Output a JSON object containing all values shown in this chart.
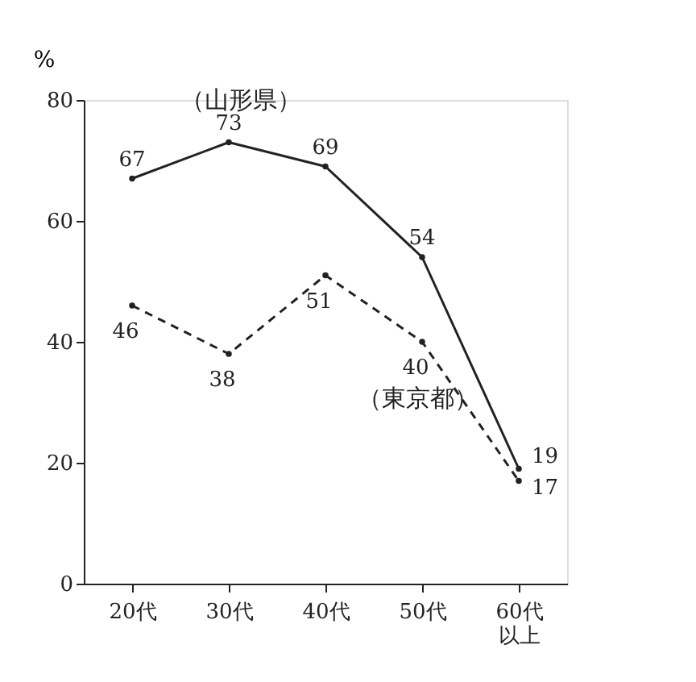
{
  "chart_data": {
    "type": "line",
    "ylabel": "%",
    "categories": [
      "20代",
      "30代",
      "40代",
      "50代",
      "60代以上"
    ],
    "series": [
      {
        "name": "（山形県）",
        "color": "#222222",
        "values": [
          67,
          73,
          69,
          54,
          19
        ],
        "line_style": "solid"
      },
      {
        "name": "（東京都）",
        "color": "#222222",
        "values": [
          46,
          38,
          51,
          40,
          17
        ],
        "line_style": "dashed"
      }
    ],
    "ylim": [
      0,
      80
    ],
    "yticks": [
      0,
      20,
      40,
      60,
      80
    ],
    "grid": false,
    "marker": "circle",
    "data_labels": true
  }
}
